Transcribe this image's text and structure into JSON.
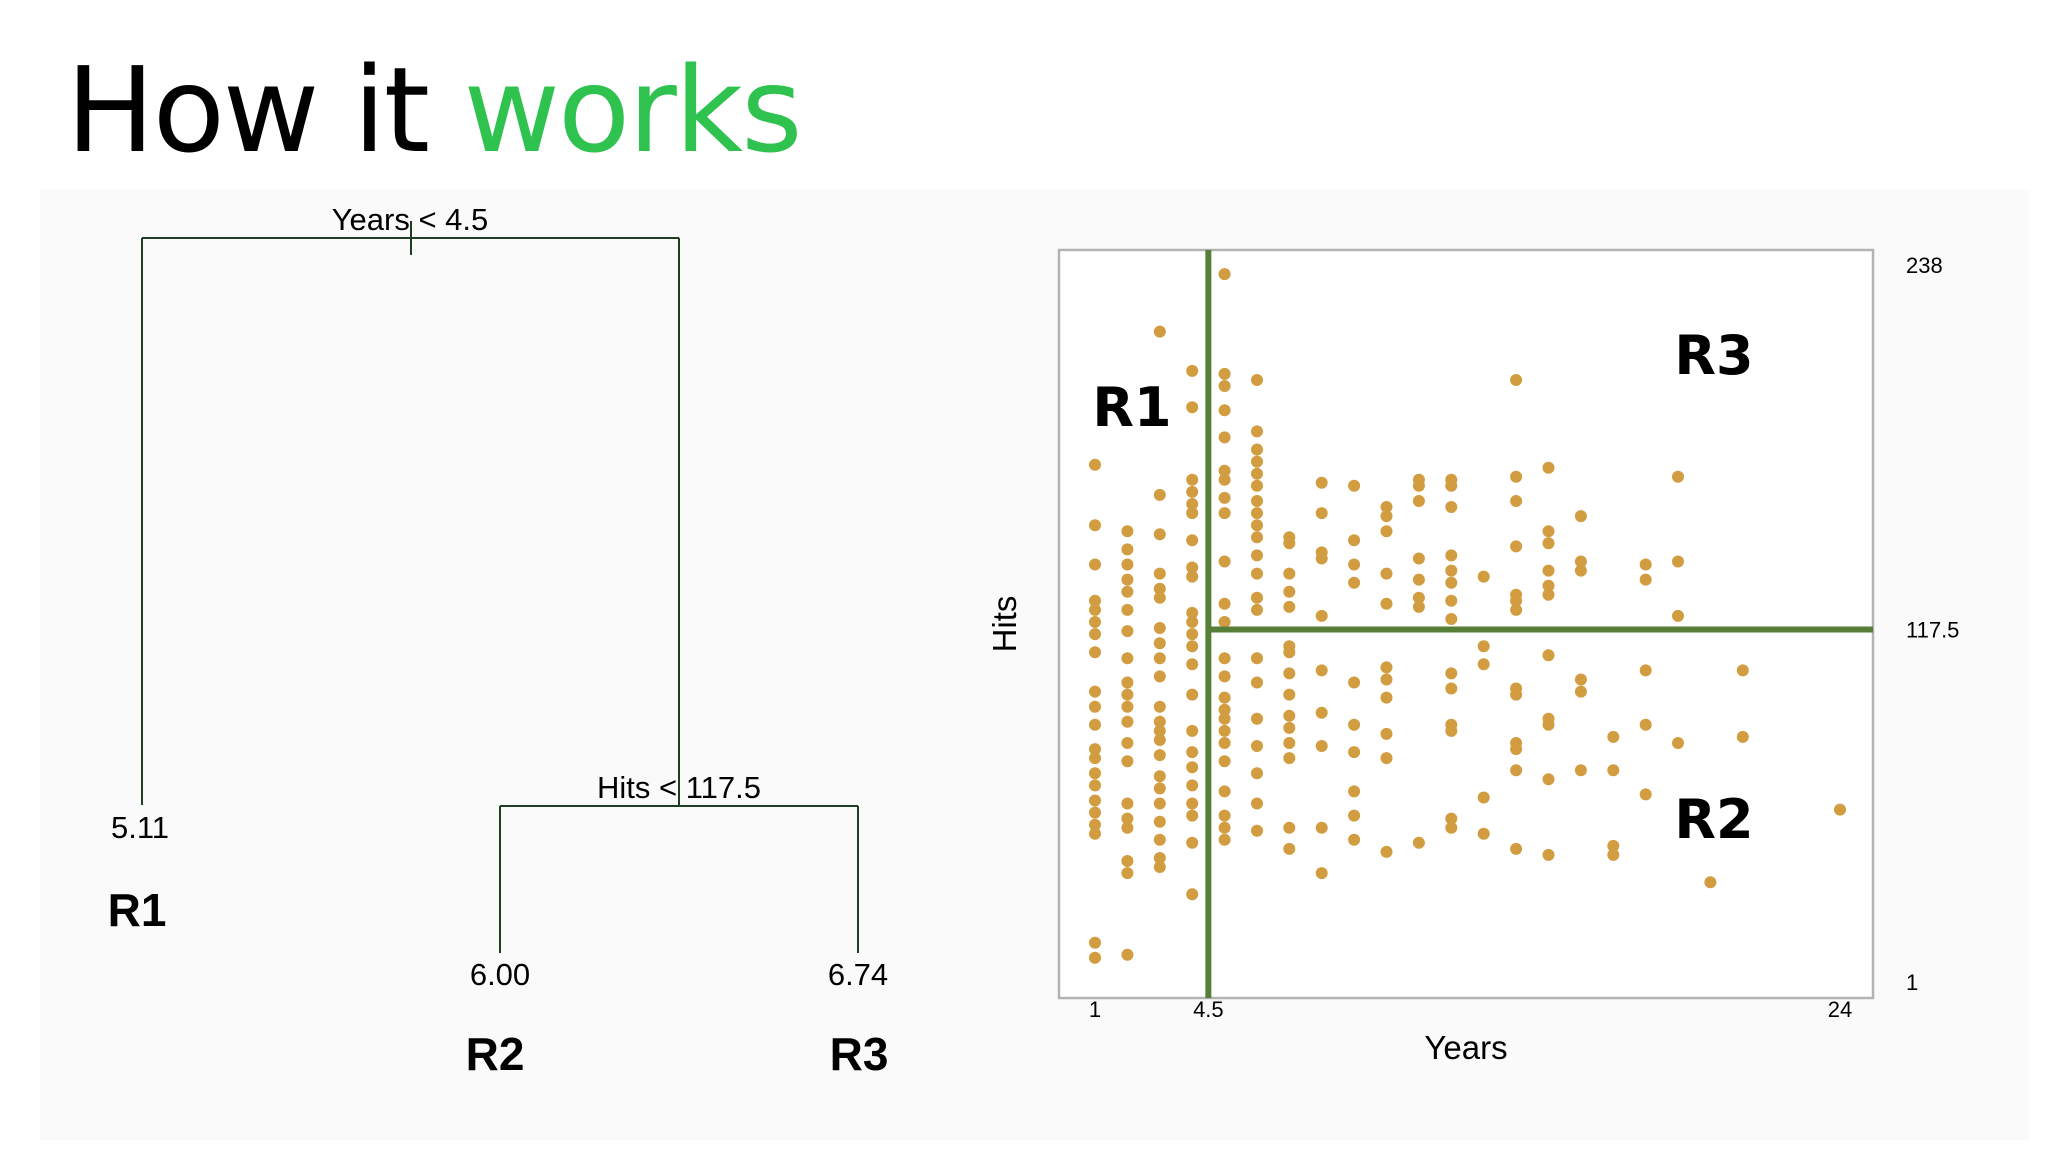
{
  "slide": {
    "title_part1": "How it ",
    "title_part2": "works",
    "accent_color": "#2fc24f"
  },
  "tree": {
    "root_split": "Years < 4.5",
    "child_split": "Hits < 117.5",
    "leaves": [
      {
        "value": "5.11",
        "region": "R1"
      },
      {
        "value": "6.00",
        "region": "R2"
      },
      {
        "value": "6.74",
        "region": "R3"
      }
    ],
    "line_color": "#1f3d22"
  },
  "scatter": {
    "xlabel": "Years",
    "ylabel": "Hits",
    "xticks": [
      "1",
      "4.5",
      "24"
    ],
    "yticks": [
      "238",
      "117.5",
      "1"
    ],
    "xlim": [
      1,
      24
    ],
    "ylim": [
      1,
      238
    ],
    "split_years": 4.5,
    "split_hits": 117.5,
    "region_labels": [
      "R1",
      "R3",
      "R2"
    ],
    "point_color": "#d29c40",
    "line_color": "#577e37",
    "points": [
      [
        1,
        14
      ],
      [
        1,
        9
      ],
      [
        1,
        172
      ],
      [
        1,
        152
      ],
      [
        1,
        139
      ],
      [
        1,
        127
      ],
      [
        1,
        124
      ],
      [
        1,
        120
      ],
      [
        1,
        116
      ],
      [
        1,
        110
      ],
      [
        1,
        97
      ],
      [
        1,
        92
      ],
      [
        1,
        86
      ],
      [
        1,
        78
      ],
      [
        1,
        75
      ],
      [
        1,
        70
      ],
      [
        1,
        66
      ],
      [
        1,
        61
      ],
      [
        1,
        57
      ],
      [
        1,
        53
      ],
      [
        1,
        50
      ],
      [
        2,
        150
      ],
      [
        2,
        144
      ],
      [
        2,
        139
      ],
      [
        2,
        134
      ],
      [
        2,
        130
      ],
      [
        2,
        124
      ],
      [
        2,
        117
      ],
      [
        2,
        108
      ],
      [
        2,
        100
      ],
      [
        2,
        96
      ],
      [
        2,
        92
      ],
      [
        2,
        87
      ],
      [
        2,
        80
      ],
      [
        2,
        74
      ],
      [
        2,
        60
      ],
      [
        2,
        55
      ],
      [
        2,
        52
      ],
      [
        2,
        41
      ],
      [
        2,
        37
      ],
      [
        2,
        10
      ],
      [
        3,
        216
      ],
      [
        3,
        162
      ],
      [
        3,
        149
      ],
      [
        3,
        136
      ],
      [
        3,
        131
      ],
      [
        3,
        128
      ],
      [
        3,
        118
      ],
      [
        3,
        113
      ],
      [
        3,
        108
      ],
      [
        3,
        102
      ],
      [
        3,
        92
      ],
      [
        3,
        87
      ],
      [
        3,
        84
      ],
      [
        3,
        81
      ],
      [
        3,
        76
      ],
      [
        3,
        69
      ],
      [
        3,
        65
      ],
      [
        3,
        60
      ],
      [
        3,
        54
      ],
      [
        3,
        48
      ],
      [
        3,
        42
      ],
      [
        3,
        39
      ],
      [
        4,
        203
      ],
      [
        4,
        191
      ],
      [
        4,
        167
      ],
      [
        4,
        163
      ],
      [
        4,
        159
      ],
      [
        4,
        156
      ],
      [
        4,
        147
      ],
      [
        4,
        138
      ],
      [
        4,
        135
      ],
      [
        4,
        123
      ],
      [
        4,
        120
      ],
      [
        4,
        116
      ],
      [
        4,
        112
      ],
      [
        4,
        106
      ],
      [
        4,
        96
      ],
      [
        4,
        84
      ],
      [
        4,
        77
      ],
      [
        4,
        72
      ],
      [
        4,
        66
      ],
      [
        4,
        60
      ],
      [
        4,
        56
      ],
      [
        4,
        47
      ],
      [
        4,
        30
      ],
      [
        5,
        235
      ],
      [
        5,
        202
      ],
      [
        5,
        198
      ],
      [
        5,
        190
      ],
      [
        5,
        181
      ],
      [
        5,
        170
      ],
      [
        5,
        167
      ],
      [
        5,
        161
      ],
      [
        5,
        156
      ],
      [
        5,
        140
      ],
      [
        5,
        126
      ],
      [
        5,
        120
      ],
      [
        5,
        108
      ],
      [
        5,
        102
      ],
      [
        5,
        95
      ],
      [
        5,
        91
      ],
      [
        5,
        88
      ],
      [
        5,
        84
      ],
      [
        5,
        80
      ],
      [
        5,
        74
      ],
      [
        5,
        64
      ],
      [
        5,
        56
      ],
      [
        5,
        52
      ],
      [
        5,
        48
      ],
      [
        6,
        200
      ],
      [
        6,
        183
      ],
      [
        6,
        177
      ],
      [
        6,
        173
      ],
      [
        6,
        169
      ],
      [
        6,
        165
      ],
      [
        6,
        160
      ],
      [
        6,
        156
      ],
      [
        6,
        152
      ],
      [
        6,
        148
      ],
      [
        6,
        142
      ],
      [
        6,
        136
      ],
      [
        6,
        128
      ],
      [
        6,
        124
      ],
      [
        6,
        108
      ],
      [
        6,
        100
      ],
      [
        6,
        88
      ],
      [
        6,
        79
      ],
      [
        6,
        70
      ],
      [
        6,
        60
      ],
      [
        6,
        51
      ],
      [
        7,
        148
      ],
      [
        7,
        146
      ],
      [
        7,
        136
      ],
      [
        7,
        130
      ],
      [
        7,
        125
      ],
      [
        7,
        112
      ],
      [
        7,
        110
      ],
      [
        7,
        103
      ],
      [
        7,
        96
      ],
      [
        7,
        89
      ],
      [
        7,
        85
      ],
      [
        7,
        80
      ],
      [
        7,
        75
      ],
      [
        7,
        52
      ],
      [
        7,
        45
      ],
      [
        8,
        166
      ],
      [
        8,
        156
      ],
      [
        8,
        143
      ],
      [
        8,
        141
      ],
      [
        8,
        122
      ],
      [
        8,
        104
      ],
      [
        8,
        90
      ],
      [
        8,
        79
      ],
      [
        8,
        52
      ],
      [
        8,
        37
      ],
      [
        9,
        165
      ],
      [
        9,
        147
      ],
      [
        9,
        139
      ],
      [
        9,
        133
      ],
      [
        9,
        100
      ],
      [
        9,
        86
      ],
      [
        9,
        77
      ],
      [
        9,
        64
      ],
      [
        9,
        56
      ],
      [
        9,
        48
      ],
      [
        10,
        158
      ],
      [
        10,
        155
      ],
      [
        10,
        150
      ],
      [
        10,
        136
      ],
      [
        10,
        126
      ],
      [
        10,
        105
      ],
      [
        10,
        101
      ],
      [
        10,
        95
      ],
      [
        10,
        83
      ],
      [
        10,
        75
      ],
      [
        10,
        44
      ],
      [
        11,
        167
      ],
      [
        11,
        165
      ],
      [
        11,
        160
      ],
      [
        11,
        141
      ],
      [
        11,
        134
      ],
      [
        11,
        128
      ],
      [
        11,
        125
      ],
      [
        11,
        47
      ],
      [
        12,
        167
      ],
      [
        12,
        165
      ],
      [
        12,
        158
      ],
      [
        12,
        142
      ],
      [
        12,
        137
      ],
      [
        12,
        133
      ],
      [
        12,
        127
      ],
      [
        12,
        121
      ],
      [
        12,
        103
      ],
      [
        12,
        98
      ],
      [
        12,
        86
      ],
      [
        12,
        84
      ],
      [
        12,
        55
      ],
      [
        12,
        52
      ],
      [
        13,
        135
      ],
      [
        13,
        112
      ],
      [
        13,
        106
      ],
      [
        13,
        62
      ],
      [
        13,
        50
      ],
      [
        14,
        200
      ],
      [
        14,
        168
      ],
      [
        14,
        160
      ],
      [
        14,
        145
      ],
      [
        14,
        129
      ],
      [
        14,
        127
      ],
      [
        14,
        124
      ],
      [
        14,
        98
      ],
      [
        14,
        96
      ],
      [
        14,
        78
      ],
      [
        14,
        80
      ],
      [
        14,
        71
      ],
      [
        14,
        45
      ],
      [
        15,
        171
      ],
      [
        15,
        150
      ],
      [
        15,
        146
      ],
      [
        15,
        137
      ],
      [
        15,
        132
      ],
      [
        15,
        129
      ],
      [
        15,
        109
      ],
      [
        15,
        88
      ],
      [
        15,
        86
      ],
      [
        15,
        68
      ],
      [
        15,
        43
      ],
      [
        16,
        155
      ],
      [
        16,
        140
      ],
      [
        16,
        137
      ],
      [
        16,
        101
      ],
      [
        16,
        97
      ],
      [
        16,
        71
      ],
      [
        17,
        82
      ],
      [
        17,
        71
      ],
      [
        17,
        46
      ],
      [
        17,
        43
      ],
      [
        18,
        139
      ],
      [
        18,
        134
      ],
      [
        18,
        104
      ],
      [
        18,
        86
      ],
      [
        18,
        63
      ],
      [
        19,
        168
      ],
      [
        19,
        140
      ],
      [
        19,
        122
      ],
      [
        19,
        80
      ],
      [
        20,
        34
      ],
      [
        21,
        104
      ],
      [
        21,
        82
      ],
      [
        24,
        58
      ]
    ]
  }
}
